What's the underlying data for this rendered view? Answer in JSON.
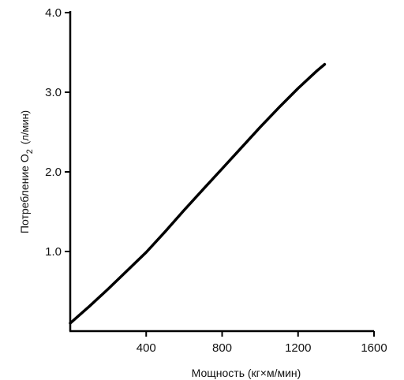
{
  "chart_data": {
    "type": "line",
    "title": "",
    "xlabel": "Мощность (кг×м/мин)",
    "ylabel_main": "Потребление O",
    "ylabel_sub": "2",
    "ylabel_unit": "(л/мин)",
    "xlim": [
      0,
      1600
    ],
    "ylim": [
      0,
      4.0
    ],
    "x_ticks": [
      400,
      800,
      1200,
      1600
    ],
    "x_tick_labels": [
      "400",
      "800",
      "1200",
      "1600"
    ],
    "y_ticks": [
      1.0,
      2.0,
      3.0,
      4.0
    ],
    "y_tick_labels": [
      "1.0",
      "2.0",
      "3.0",
      "4.0"
    ],
    "grid": false,
    "series": [
      {
        "x": [
          0,
          100,
          200,
          300,
          400,
          500,
          600,
          700,
          800,
          900,
          1000,
          1100,
          1200,
          1300,
          1340
        ],
        "y": [
          0.1,
          0.31,
          0.53,
          0.76,
          0.99,
          1.25,
          1.52,
          1.78,
          2.04,
          2.3,
          2.56,
          2.81,
          3.05,
          3.27,
          3.35
        ]
      }
    ],
    "line_color": "#000000"
  }
}
